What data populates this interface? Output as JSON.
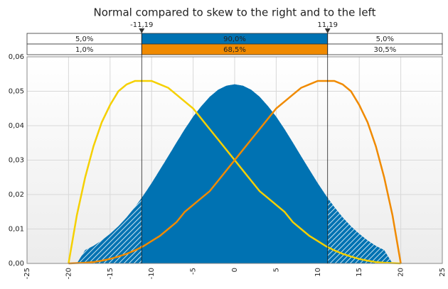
{
  "chart_data": {
    "type": "area-line",
    "title": "Normal compared to skew to the right and to the left",
    "x": [
      -20,
      -19,
      -18,
      -17,
      -16,
      -15,
      -14,
      -13,
      -12,
      -11,
      -10,
      -9,
      -8,
      -7,
      -6,
      -5,
      -4,
      -3,
      -2,
      -1,
      0,
      1,
      2,
      3,
      4,
      5,
      6,
      7,
      8,
      9,
      10,
      11,
      12,
      13,
      14,
      15,
      16,
      17,
      18,
      19,
      20
    ],
    "series": [
      {
        "color": "#0072b2",
        "values": [
          0,
          0,
          0.0039,
          0.0051,
          0.0067,
          0.0086,
          0.0108,
          0.0134,
          0.0164,
          0.0197,
          0.0233,
          0.0272,
          0.0311,
          0.0351,
          0.039,
          0.0426,
          0.0457,
          0.0484,
          0.0504,
          0.0516,
          0.052,
          0.0516,
          0.0504,
          0.0484,
          0.0457,
          0.0426,
          0.039,
          0.0351,
          0.0311,
          0.0272,
          0.0233,
          0.0197,
          0.0164,
          0.0134,
          0.0108,
          0.0086,
          0.0067,
          0.0051,
          0.0039,
          0,
          0
        ]
      },
      {
        "color": "#f5d000",
        "values": [
          0,
          0.014,
          0.025,
          0.034,
          0.041,
          0.046,
          0.05,
          0.052,
          0.053,
          0.053,
          0.053,
          0.052,
          0.051,
          0.049,
          0.047,
          0.045,
          0.042,
          0.039,
          0.036,
          0.033,
          0.03,
          0.027,
          0.024,
          0.021,
          0.019,
          0.017,
          0.015,
          0.012,
          0.01,
          0.008,
          0.0065,
          0.005,
          0.0038,
          0.0028,
          0.002,
          0.0013,
          0.0008,
          0.0004,
          0.0002,
          0.0001,
          0
        ]
      },
      {
        "color": "#f08a00",
        "values": [
          0,
          0.0001,
          0.0002,
          0.0004,
          0.0008,
          0.0013,
          0.002,
          0.0028,
          0.0038,
          0.005,
          0.0065,
          0.008,
          0.01,
          0.012,
          0.015,
          0.017,
          0.019,
          0.021,
          0.024,
          0.027,
          0.03,
          0.033,
          0.036,
          0.039,
          0.042,
          0.045,
          0.047,
          0.049,
          0.051,
          0.052,
          0.053,
          0.053,
          0.053,
          0.052,
          0.05,
          0.046,
          0.041,
          0.034,
          0.025,
          0.014,
          0
        ]
      }
    ],
    "delimiters": [
      {
        "value": -11.19,
        "label": "-11,19"
      },
      {
        "value": 11.19,
        "label": "11,19"
      }
    ],
    "bands": [
      {
        "color": "#0072b2",
        "values": [
          5,
          90,
          5
        ],
        "value_labels": [
          "5,0%",
          "90,0%",
          "5,0%"
        ]
      },
      {
        "color": "#f08a00",
        "values": [
          1,
          68.5,
          30.5
        ],
        "value_labels": [
          "1,0%",
          "68,5%",
          "30,5%"
        ]
      }
    ],
    "xlim": [
      -25,
      25
    ],
    "xticks": [
      -25,
      -20,
      -15,
      -10,
      -5,
      0,
      5,
      10,
      15,
      20,
      25
    ],
    "ylim": [
      0,
      0.06
    ],
    "yticks": [
      {
        "value": 0,
        "label": "0,00"
      },
      {
        "value": 0.01,
        "label": "0,01"
      },
      {
        "value": 0.02,
        "label": "0,02"
      },
      {
        "value": 0.03,
        "label": "0,03"
      },
      {
        "value": 0.04,
        "label": "0,04"
      },
      {
        "value": 0.05,
        "label": "0,05"
      },
      {
        "value": 0.06,
        "label": "0,06"
      }
    ],
    "grid": true
  }
}
